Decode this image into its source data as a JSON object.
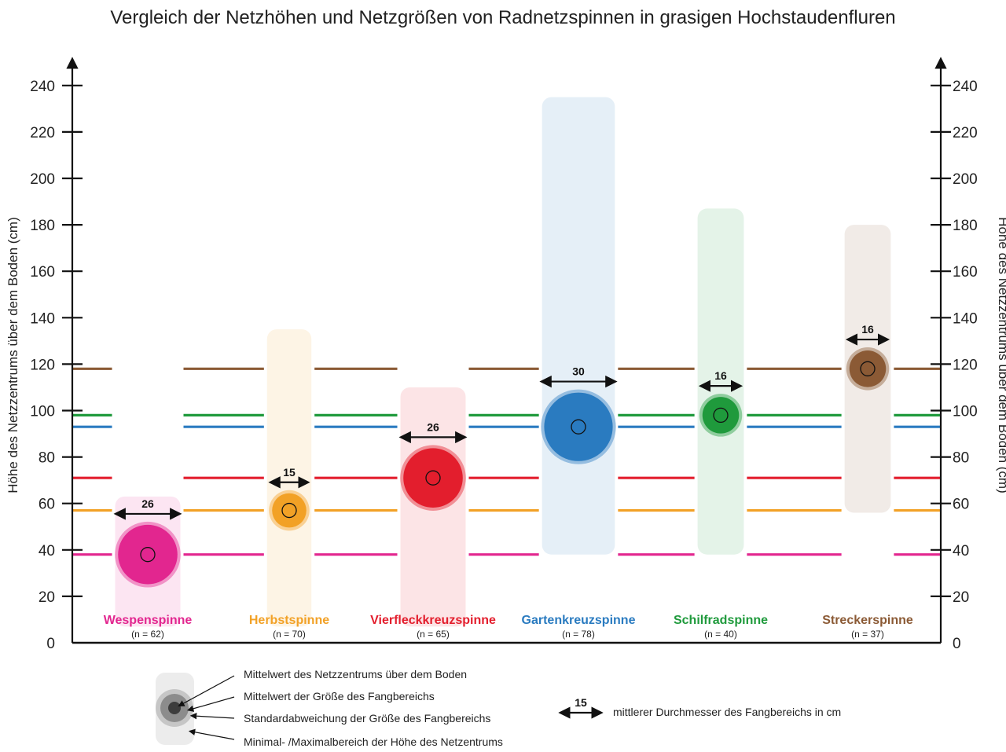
{
  "title": "Vergleich der Netzhöhen und Netzgrößen von Radnetzspinnen in grasigen Hochstaudenfluren",
  "chart_data": {
    "type": "scatter",
    "title": "Vergleich der Netzhöhen und Netzgrößen von Radnetzspinnen in grasigen Hochstaudenfluren",
    "ylabel": "Höhe des Netzzentrums über dem Boden (cm)",
    "ylabel_right": "Höhe des Netzzentrums über dem Boden (cm)",
    "ylim": [
      0,
      250
    ],
    "yticks": [
      0,
      20,
      40,
      60,
      80,
      100,
      120,
      140,
      160,
      180,
      200,
      220,
      240
    ],
    "grid": false,
    "series": [
      {
        "name": "Wespenspinne",
        "n_label": "(n = 62)",
        "color": "#e2268f",
        "mean_height": 38,
        "min_height": 7,
        "max_height": 63,
        "diameter": 26,
        "diameter_label": "26"
      },
      {
        "name": "Herbstspinne",
        "n_label": "(n = 70)",
        "color": "#f2a126",
        "mean_height": 57,
        "min_height": 7,
        "max_height": 135,
        "diameter": 15,
        "diameter_label": "15"
      },
      {
        "name": "Vierfleckkreuzspinne",
        "n_label": "(n = 65)",
        "color": "#e31e2d",
        "mean_height": 71,
        "min_height": 7,
        "max_height": 110,
        "diameter": 26,
        "diameter_label": "26"
      },
      {
        "name": "Gartenkreuzspinne",
        "n_label": "(n = 78)",
        "color": "#2a7bc0",
        "mean_height": 93,
        "min_height": 38,
        "max_height": 235,
        "diameter": 30,
        "diameter_label": "30"
      },
      {
        "name": "Schilfradspinne",
        "n_label": "(n = 40)",
        "color": "#1f9a3c",
        "mean_height": 98,
        "min_height": 38,
        "max_height": 187,
        "diameter": 16,
        "diameter_label": "16"
      },
      {
        "name": "Streckerspinne",
        "n_label": "(n = 37)",
        "color": "#8b5a35",
        "mean_height": 118,
        "min_height": 56,
        "max_height": 180,
        "diameter": 16,
        "diameter_label": "16"
      }
    ]
  },
  "legend": {
    "mean_center": "Mittelwert des Netzzentrums über dem Boden",
    "mean_size": "Mittelwert der Größe des Fangbereichs",
    "std_size": "Standardabweichung der Größe des Fangbereichs",
    "range": "Minimal- /Maximalbereich der Höhe des Netzentrums",
    "diam_example": "15",
    "diam_text": "mittlerer Durchmesser des Fangbereichs in cm"
  }
}
